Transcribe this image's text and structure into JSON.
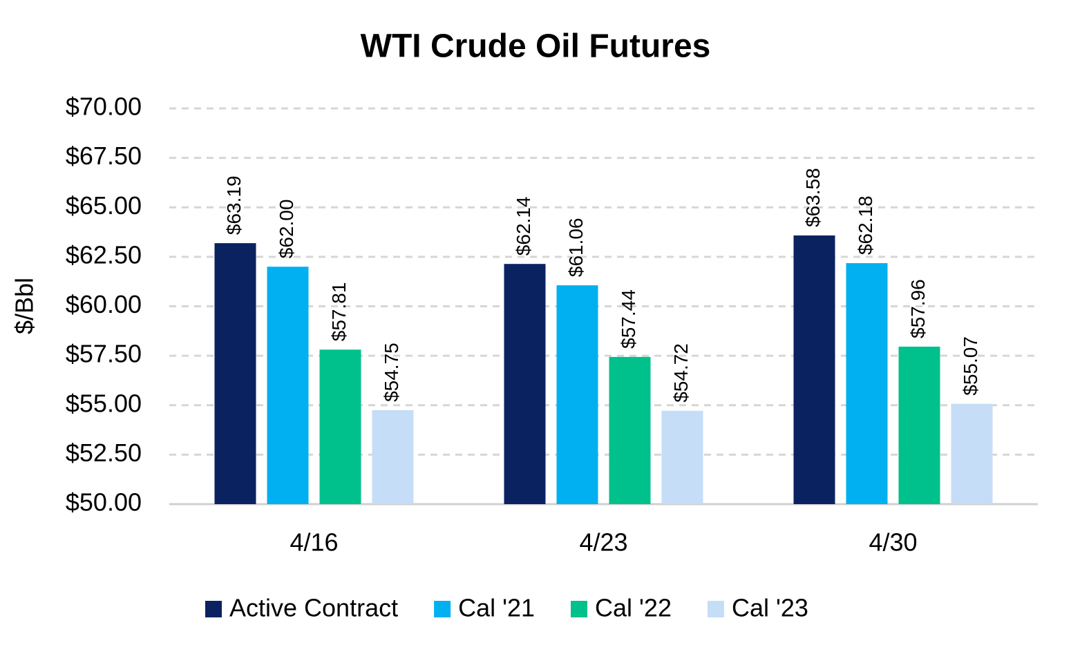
{
  "chart_data": {
    "type": "bar",
    "title": "WTI Crude Oil Futures",
    "y_label": "$/Bbl",
    "categories": [
      "4/16",
      "4/23",
      "4/30"
    ],
    "series": [
      {
        "name": "Active Contract",
        "color": "#0b2260",
        "values": [
          63.19,
          62.14,
          63.58
        ],
        "value_labels": [
          "$63.19",
          "$62.14",
          "$63.58"
        ]
      },
      {
        "name": "Cal '21",
        "color": "#00b0f0",
        "values": [
          62.0,
          61.06,
          62.18
        ],
        "value_labels": [
          "$62.00",
          "$61.06",
          "$62.18"
        ]
      },
      {
        "name": "Cal '22",
        "color": "#00c08b",
        "values": [
          57.81,
          57.44,
          57.96
        ],
        "value_labels": [
          "$57.81",
          "$57.44",
          "$57.96"
        ]
      },
      {
        "name": "Cal '23",
        "color": "#c5ddf6",
        "values": [
          54.75,
          54.72,
          55.07
        ],
        "value_labels": [
          "$54.75",
          "$54.72",
          "$55.07"
        ]
      }
    ],
    "ylim": [
      50,
      70
    ],
    "yticks": [
      {
        "value": 50,
        "label": "$50.00"
      },
      {
        "value": 52.5,
        "label": "$52.50"
      },
      {
        "value": 55,
        "label": "$55.00"
      },
      {
        "value": 57.5,
        "label": "$57.50"
      },
      {
        "value": 60,
        "label": "$60.00"
      },
      {
        "value": 62.5,
        "label": "$62.50"
      },
      {
        "value": 65,
        "label": "$65.00"
      },
      {
        "value": 67.5,
        "label": "$67.50"
      },
      {
        "value": 70,
        "label": "$70.00"
      }
    ],
    "grid": true,
    "legend": "bottom"
  }
}
